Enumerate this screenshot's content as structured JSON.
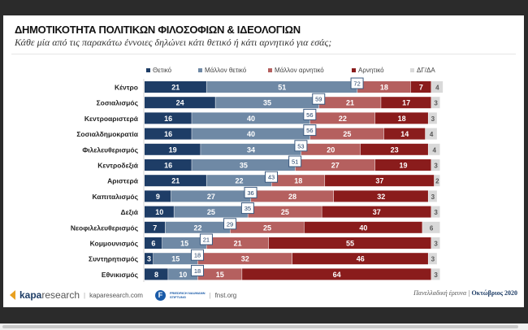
{
  "chart_data": {
    "type": "bar",
    "orientation": "horizontal-stacked",
    "title": "ΔΗΜΟΤΙΚΟΤΗΤΑ ΠΟΛΙΤΙΚΩΝ ΦΙΛΟΣΟΦΙΩΝ & ΙΔΕΟΛΟΓΙΩΝ",
    "subtitle": "Κάθε μία από τις παρακάτω έννοιες δηλώνει κάτι θετικό ή κάτι αρνητικό για εσάς;",
    "legend_position": "top",
    "categories": [
      "Κέντρο",
      "Σοσιαλισμός",
      "Κεντροαριστερά",
      "Σοσιαλδημοκρατία",
      "Φιλελευθερισμός",
      "Κεντροδεξιά",
      "Αριστερά",
      "Καπιταλισμός",
      "Δεξιά",
      "Νεοφιλελευθερισμός",
      "Κομμουνισμός",
      "Συντηρητισμός",
      "Εθνικισμός"
    ],
    "series": [
      {
        "name": "Θετικό",
        "color": "#1e3d66",
        "values": [
          21,
          24,
          16,
          16,
          19,
          16,
          21,
          9,
          10,
          7,
          6,
          3,
          8
        ]
      },
      {
        "name": "Μάλλον θετικό",
        "color": "#6f89a5",
        "values": [
          51,
          35,
          40,
          40,
          34,
          35,
          22,
          27,
          25,
          22,
          15,
          15,
          10
        ]
      },
      {
        "name": "Μάλλον αρνητικό",
        "color": "#b5605f",
        "values": [
          18,
          21,
          22,
          25,
          20,
          27,
          18,
          28,
          25,
          25,
          21,
          32,
          15
        ]
      },
      {
        "name": "Αρνητικό",
        "color": "#8a1c1c",
        "values": [
          7,
          17,
          18,
          14,
          23,
          19,
          37,
          32,
          37,
          40,
          55,
          46,
          64
        ]
      },
      {
        "name": "ΔΓ/ΔΑ",
        "color": "#d9d9d9",
        "values": [
          4,
          3,
          3,
          4,
          4,
          3,
          2,
          3,
          3,
          6,
          3,
          3,
          3
        ]
      }
    ],
    "positive_totals": [
      72,
      59,
      56,
      56,
      53,
      51,
      43,
      36,
      35,
      29,
      21,
      18,
      18
    ]
  },
  "footer": {
    "brand": "kapa",
    "brand2": "research",
    "site1": "kaparesearch.com",
    "fnf1": "FRIEDRICH NAUMANN",
    "fnf2": "STIFTUNG",
    "site2": "fnst.org",
    "survey": "Πανελλαδική έρευνα | ",
    "date": "Οκτώβριος 2020"
  }
}
